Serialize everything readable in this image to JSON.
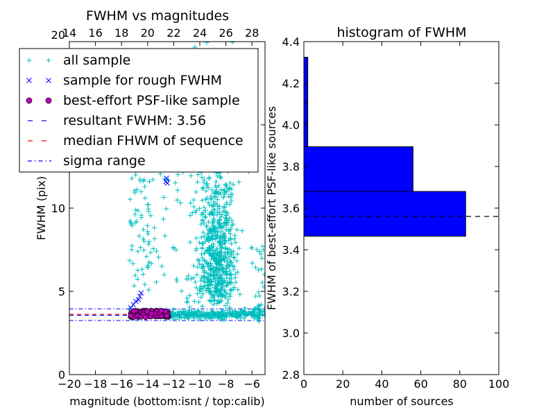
{
  "chart_data": [
    {
      "type": "scatter",
      "title": "FWHM vs magnitudes",
      "xlabel": "magnitude (bottom:isnt / top:calib)",
      "ylabel": "FWHM (pix)",
      "xlim": [
        -20,
        -5
      ],
      "ylim": [
        0,
        20
      ],
      "xticks": [
        -20,
        -18,
        -16,
        -14,
        -12,
        -10,
        -8,
        -6
      ],
      "xtick_labels": [
        "−20",
        "−18",
        "−16",
        "−14",
        "−12",
        "−10",
        "−8",
        "−6"
      ],
      "yticks": [
        0,
        5,
        10,
        15,
        20
      ],
      "ytick_labels": [
        "0",
        "5",
        "10",
        "15",
        "20"
      ],
      "top_axis": {
        "ticks": [
          14,
          16,
          18,
          20,
          22,
          24,
          26,
          28
        ],
        "tick_labels": [
          "14",
          "16",
          "18",
          "20",
          "22",
          "24",
          "26",
          "28"
        ],
        "offset": 34
      },
      "legend_position": "upper-left",
      "series": [
        {
          "name": "all sample",
          "marker": "plus",
          "color": "#00bfbf",
          "scatter": "all_sample"
        },
        {
          "name": "sample for rough FWHM",
          "marker": "x",
          "color": "#0000ff",
          "points": [
            [
              -15.3,
              4.0
            ],
            [
              -15.1,
              4.2
            ],
            [
              -14.9,
              4.4
            ],
            [
              -14.6,
              4.7
            ],
            [
              -14.5,
              4.9
            ],
            [
              -14.7,
              4.5
            ],
            [
              -12.6,
              11.6
            ],
            [
              -12.55,
              11.8
            ],
            [
              -12.5,
              11.5
            ]
          ]
        },
        {
          "name": "best-effort PSF-like sample",
          "marker": "circle",
          "color": "#bf00bf",
          "x_range": [
            -15.3,
            -12.4
          ],
          "y_range": [
            3.45,
            3.85
          ]
        },
        {
          "name": "resultant FWHM: 3.56",
          "style": "dashed",
          "color": "#0000ff",
          "y": 3.56
        },
        {
          "name": "median FHWM of sequence",
          "style": "dashed",
          "color": "#ff0000",
          "y": 3.62
        },
        {
          "name": "sigma range",
          "style": "dashdot",
          "color": "#0000ff",
          "y_values": [
            3.25,
            3.95
          ]
        }
      ]
    },
    {
      "type": "bar",
      "orientation": "horizontal",
      "title": "histogram of FWHM",
      "xlabel": "number of sources",
      "ylabel": "FWHM of best-effort PSF-like sources",
      "xlim": [
        0,
        100
      ],
      "ylim": [
        2.8,
        4.4
      ],
      "xticks": [
        0,
        20,
        40,
        60,
        80,
        100
      ],
      "yticks": [
        2.8,
        3.0,
        3.2,
        3.4,
        3.6,
        3.8,
        4.0,
        4.2,
        4.4
      ],
      "ytick_labels": [
        "2.8",
        "3.0",
        "3.2",
        "3.4",
        "3.6",
        "3.8",
        "4.0",
        "4.2",
        "4.4"
      ],
      "bar_color": "#0000ff",
      "bins": [
        {
          "y0": 3.465,
          "y1": 3.68,
          "count": 83
        },
        {
          "y0": 3.68,
          "y1": 3.895,
          "count": 56
        },
        {
          "y0": 3.895,
          "y1": 4.11,
          "count": 2
        },
        {
          "y0": 4.11,
          "y1": 4.325,
          "count": 2
        }
      ],
      "reference_line": {
        "y": 3.56,
        "style": "dashed",
        "color": "#000000"
      }
    }
  ]
}
